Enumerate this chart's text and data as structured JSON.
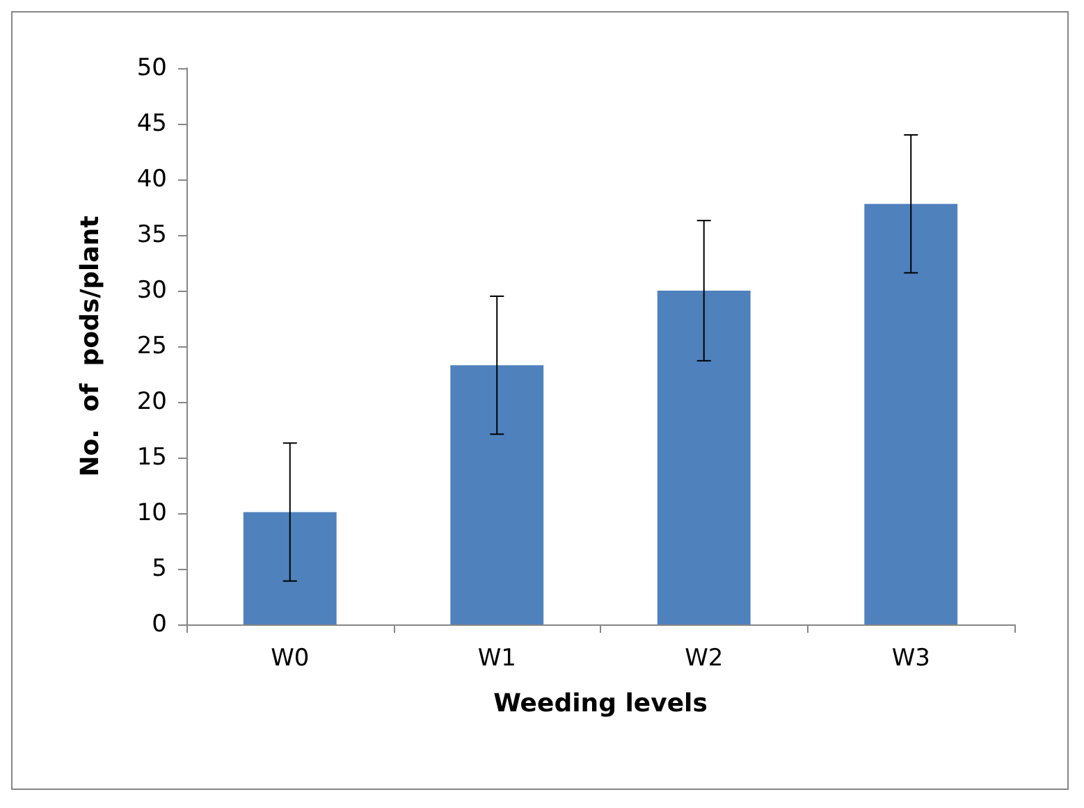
{
  "chart_data": {
    "type": "bar",
    "xlabel": "Weeding levels",
    "ylabel": "No.  of  pods/plant",
    "categories": [
      "W0",
      "W1",
      "W2",
      "W3"
    ],
    "values": [
      10.1,
      23.3,
      30,
      37.8
    ],
    "errors": [
      6.2,
      6.2,
      6.3,
      6.2
    ],
    "color": "#4f81bd",
    "ylim": [
      0,
      50
    ],
    "yticks": [
      0,
      5,
      10,
      15,
      20,
      25,
      30,
      35,
      40,
      45,
      50
    ],
    "grid": false
  }
}
